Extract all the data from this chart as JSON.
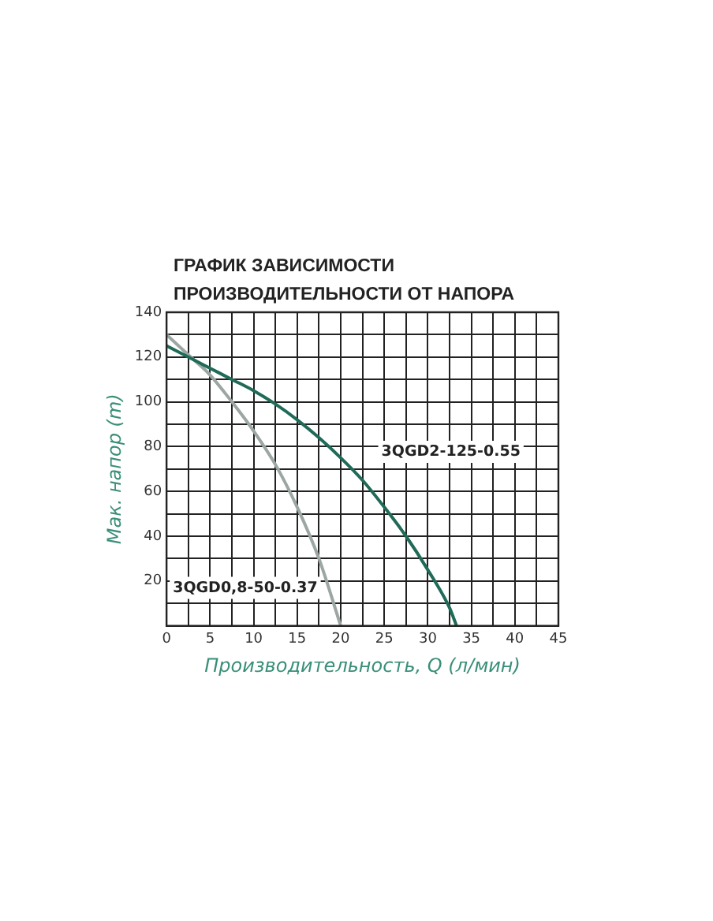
{
  "chart_data": {
    "type": "line",
    "title": "ГРАФИК ЗАВИСИМОСТИ ПРОИЗВОДИТЕЛЬНОСТИ  ОТ НАПОРА",
    "xlabel": "Производительность, Q (л/мин)",
    "ylabel": "Мак. напор (m)",
    "xlim": [
      0,
      45
    ],
    "ylim": [
      0,
      140
    ],
    "xticks": [
      0,
      {
        "value": 2.5,
        "label": null
      },
      5,
      {
        "value": 7.5,
        "label": null
      },
      10,
      {
        "value": 12.5,
        "label": null
      },
      15,
      {
        "value": 17.5,
        "label": null
      },
      20,
      {
        "value": 22.5,
        "label": null
      },
      25,
      {
        "value": 27.5,
        "label": null
      },
      30,
      {
        "value": 32.5,
        "label": null
      },
      35,
      {
        "value": 37.5,
        "label": null
      },
      40,
      {
        "value": 42.5,
        "label": null
      },
      45
    ],
    "yticks": [
      {
        "value": 0,
        "label": null
      },
      {
        "value": 10,
        "label": null
      },
      20,
      {
        "value": 30,
        "label": null
      },
      40,
      {
        "value": 50,
        "label": null
      },
      60,
      {
        "value": 70,
        "label": null
      },
      80,
      {
        "value": 90,
        "label": null
      },
      100,
      {
        "value": 110,
        "label": null
      },
      120,
      {
        "value": 130,
        "label": null
      },
      140
    ],
    "grid": true,
    "legend": false,
    "marker": "none",
    "line_style": "solid",
    "series": [
      {
        "name": "3QGD2-125-0.55",
        "color": "#1f6b58",
        "x": [
          0,
          2.5,
          5,
          7.5,
          10,
          12.5,
          15,
          17.5,
          20,
          22.5,
          25,
          27.5,
          30,
          32.5,
          33.3
        ],
        "values": [
          125,
          120,
          115,
          110,
          105,
          99,
          92,
          84,
          75,
          65,
          53,
          40,
          25,
          8,
          0
        ]
      },
      {
        "name": "3QGD0,8-50-0.37",
        "color": "#9ca6a3",
        "x": [
          0,
          2.5,
          5,
          7.5,
          10,
          12.5,
          15,
          17.5,
          20
        ],
        "values": [
          130,
          121,
          112,
          100,
          87,
          72,
          53,
          30,
          0
        ]
      }
    ]
  }
}
